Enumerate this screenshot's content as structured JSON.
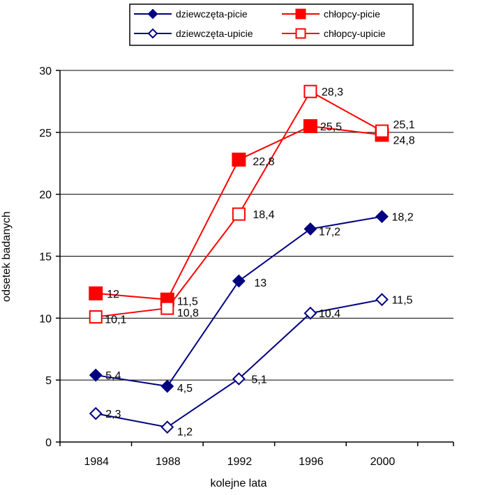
{
  "chart_data": {
    "type": "line",
    "title": "",
    "xlabel": "kolejne lata",
    "ylabel": "odsetek badanych",
    "categories": [
      "1984",
      "1988",
      "1992",
      "1996",
      "2000"
    ],
    "ylim": [
      0,
      30
    ],
    "yticks": [
      "0",
      "5",
      "10",
      "15",
      "20",
      "25",
      "30"
    ],
    "grid": "horizontal",
    "legend_position": "top",
    "series": [
      {
        "name": "dziewczęta-picie",
        "values": [
          5.4,
          4.5,
          13,
          17.2,
          18.2
        ],
        "labels": [
          "5,4",
          "4,5",
          "13",
          "17,2",
          "18,2"
        ],
        "color": "#000080",
        "marker": "diamond",
        "filled": true
      },
      {
        "name": "chłopcy-picie",
        "values": [
          12,
          11.5,
          22.8,
          25.5,
          24.8
        ],
        "labels": [
          "12",
          "11,5",
          "22,8",
          "25,5",
          "24,8"
        ],
        "color": "#ff0000",
        "marker": "square",
        "filled": true
      },
      {
        "name": "dziewczęta-upicie",
        "values": [
          2.3,
          1.2,
          5.1,
          10.4,
          11.5
        ],
        "labels": [
          "2,3",
          "1,2",
          "5,1",
          "10,4",
          "11,5"
        ],
        "color": "#000080",
        "marker": "diamond",
        "filled": false
      },
      {
        "name": "chłopcy-upicie",
        "values": [
          10.1,
          10.8,
          18.4,
          28.3,
          25.1
        ],
        "labels": [
          "10,1",
          "10,8",
          "18,4",
          "28,3",
          "25,1"
        ],
        "color": "#ff0000",
        "marker": "square",
        "filled": false
      }
    ]
  }
}
